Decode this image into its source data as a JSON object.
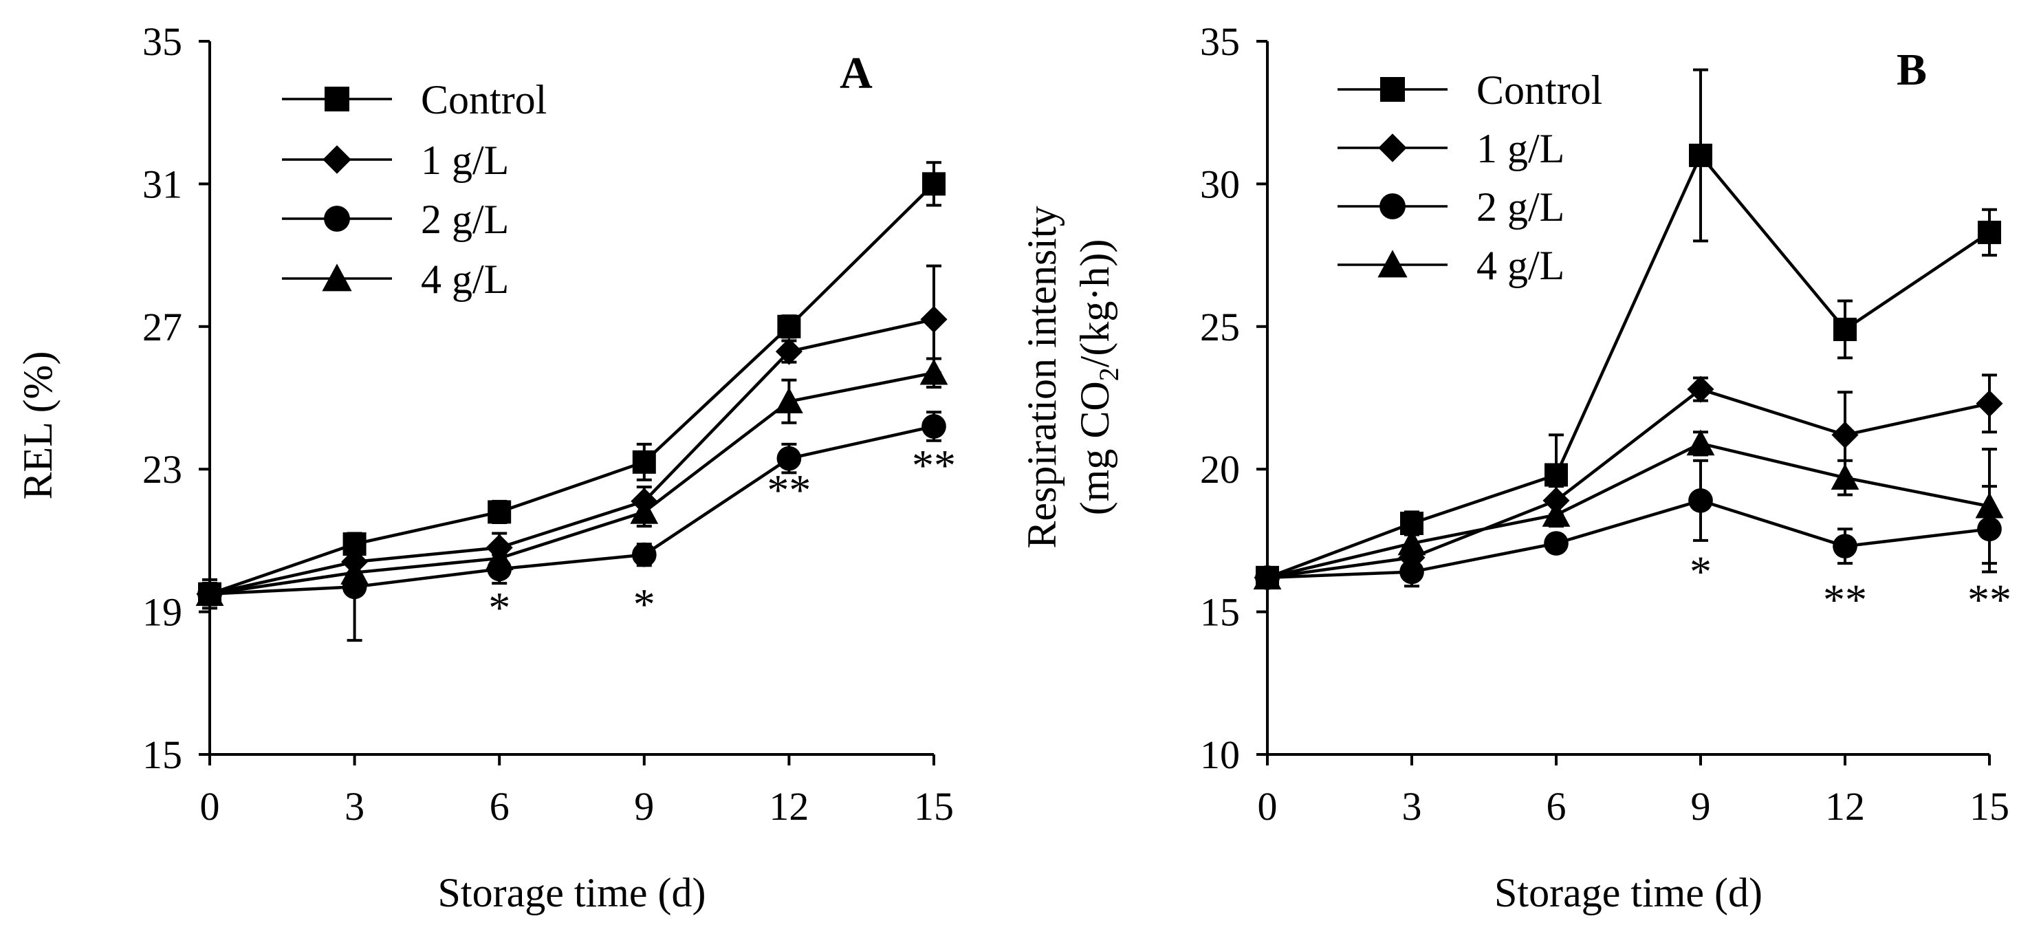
{
  "colors": {
    "ink": "#000000",
    "background": "#ffffff"
  },
  "chart_data": [
    {
      "type": "line",
      "panel_label": "A",
      "xlabel": "Storage time (d)",
      "ylabel": "REL (%)",
      "x": [
        0,
        3,
        6,
        9,
        12,
        15
      ],
      "xlim": [
        0,
        15
      ],
      "ylim": [
        15,
        35
      ],
      "yticks": [
        15,
        19,
        23,
        27,
        31,
        35
      ],
      "grid": false,
      "legend_position": "top-left",
      "series": [
        {
          "name": "Control",
          "marker": "square",
          "values": [
            19.5,
            20.9,
            21.8,
            23.2,
            27.0,
            31.0
          ],
          "errors": [
            0.4,
            0.3,
            0.3,
            0.5,
            0.3,
            0.6
          ]
        },
        {
          "name": "1 g/L",
          "marker": "diamond",
          "values": [
            19.5,
            20.4,
            20.8,
            22.1,
            26.3,
            27.2
          ],
          "errors": [
            0.3,
            0.3,
            0.4,
            0.4,
            0.3,
            1.5
          ]
        },
        {
          "name": "2 g/L",
          "marker": "circle",
          "values": [
            19.5,
            19.7,
            20.2,
            20.6,
            23.3,
            24.2
          ],
          "errors": [
            0.3,
            1.5,
            0.4,
            0.3,
            0.4,
            0.4
          ]
        },
        {
          "name": "4 g/L",
          "marker": "triangle",
          "values": [
            19.5,
            20.1,
            20.5,
            21.8,
            24.9,
            25.7
          ],
          "errors": [
            0.3,
            0.3,
            0.3,
            0.4,
            0.6,
            0.4
          ]
        }
      ],
      "significance": [
        {
          "x": 6,
          "label": "*",
          "y": 18.7
        },
        {
          "x": 9,
          "label": "*",
          "y": 18.8
        },
        {
          "x": 12,
          "label": "**",
          "y": 22.0
        },
        {
          "x": 15,
          "label": "**",
          "y": 22.7
        }
      ]
    },
    {
      "type": "line",
      "panel_label": "B",
      "xlabel": "Storage time (d)",
      "ylabel_line1": "Respiration intensity",
      "ylabel_line2_prefix": "(mg CO",
      "ylabel_line2_sub": "2",
      "ylabel_line2_suffix": "/(kg·h))",
      "x": [
        0,
        3,
        6,
        9,
        12,
        15
      ],
      "xlim": [
        0,
        15
      ],
      "ylim": [
        10,
        35
      ],
      "yticks": [
        10,
        15,
        20,
        25,
        30,
        35
      ],
      "grid": false,
      "legend_position": "top-left",
      "series": [
        {
          "name": "Control",
          "marker": "square",
          "values": [
            16.2,
            18.1,
            19.8,
            31.0,
            24.9,
            28.3
          ],
          "errors": [
            0.3,
            0.4,
            1.4,
            3.0,
            1.0,
            0.8
          ]
        },
        {
          "name": "1 g/L",
          "marker": "diamond",
          "values": [
            16.2,
            16.9,
            18.9,
            22.8,
            21.2,
            22.3
          ],
          "errors": [
            0.3,
            0.4,
            0.5,
            0.4,
            1.5,
            1.0
          ]
        },
        {
          "name": "2 g/L",
          "marker": "circle",
          "values": [
            16.2,
            16.4,
            17.4,
            18.9,
            17.3,
            17.9
          ],
          "errors": [
            0.3,
            0.5,
            0.3,
            1.4,
            0.6,
            1.5
          ]
        },
        {
          "name": "4 g/L",
          "marker": "triangle",
          "values": [
            16.2,
            17.4,
            18.4,
            20.9,
            19.7,
            18.7
          ],
          "errors": [
            0.3,
            0.4,
            0.4,
            0.4,
            0.6,
            2.0
          ]
        }
      ],
      "significance": [
        {
          "x": 9,
          "label": "*",
          "y": 15.9
        },
        {
          "x": 12,
          "label": "**",
          "y": 14.9
        },
        {
          "x": 15,
          "label": "**",
          "y": 14.9
        }
      ]
    }
  ]
}
